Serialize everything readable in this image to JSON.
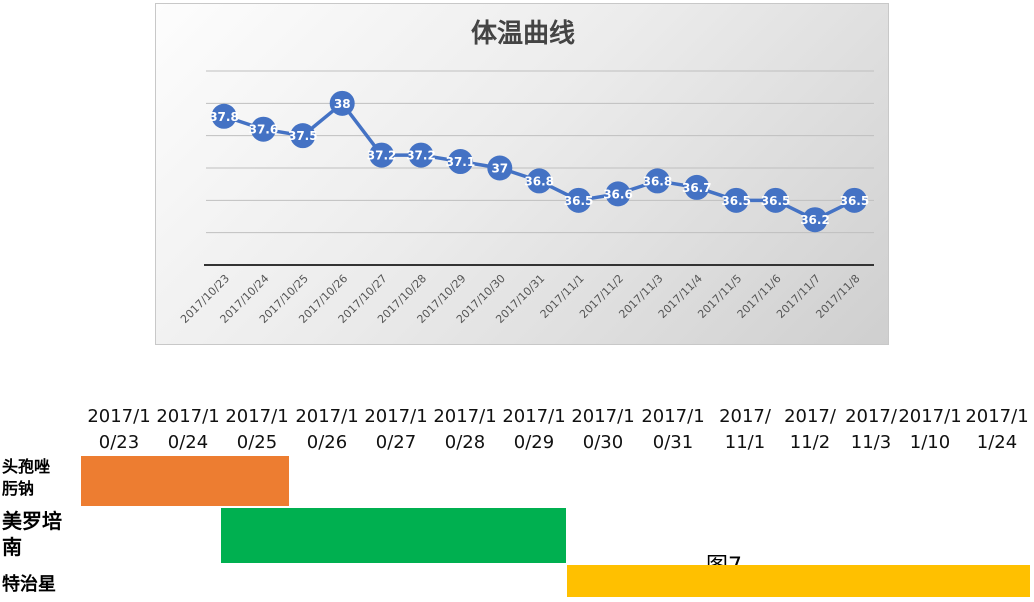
{
  "chart_data": {
    "type": "line",
    "title": "体温曲线",
    "categories": [
      "2017/10/23",
      "2017/10/24",
      "2017/10/25",
      "2017/10/26",
      "2017/10/27",
      "2017/10/28",
      "2017/10/29",
      "2017/10/30",
      "2017/10/31",
      "2017/11/1",
      "2017/11/2",
      "2017/11/3",
      "2017/11/4",
      "2017/11/5",
      "2017/11/6",
      "2017/11/7",
      "2017/11/8"
    ],
    "series": [
      {
        "values": [
          37.8,
          37.6,
          37.5,
          38,
          37.2,
          37.2,
          37.1,
          37,
          36.8,
          36.5,
          36.6,
          36.8,
          36.7,
          36.5,
          36.5,
          36.2,
          36.5
        ]
      }
    ],
    "ylim": [
      35.5,
      38.5
    ],
    "grid": true,
    "colors": {
      "line": "#4472C4",
      "grid": "#bfbfbf",
      "axis": "#333333"
    }
  },
  "timeline": {
    "dates": [
      "2017/1\n0/23",
      "2017/1\n0/24",
      "2017/1\n0/25",
      "2017/1\n0/26",
      "2017/1\n0/27",
      "2017/1\n0/28",
      "2017/1\n0/29",
      "2017/1\n0/30",
      "2017/1\n0/31",
      "2017/\n11/1",
      "2017/\n11/2",
      "2017/\n11/3",
      "2017/1\n1/10",
      "2017/1\n1/24"
    ],
    "drugs": [
      {
        "name": "头孢唑\n肟钠",
        "color": "#ED7D31"
      },
      {
        "name": "美罗培\n南",
        "color": "#00B050"
      },
      {
        "name": "特治星",
        "color": "#FFC000"
      }
    ],
    "caption": "图7"
  }
}
